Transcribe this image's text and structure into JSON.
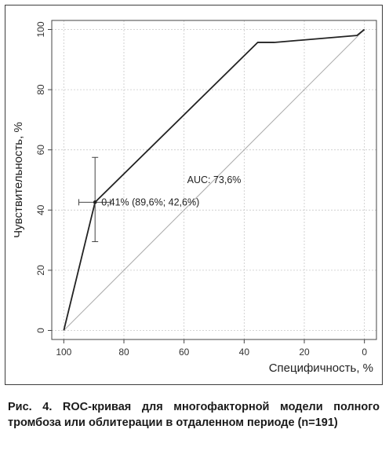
{
  "chart_data": {
    "type": "line",
    "title": "",
    "xlabel": "Специфичность, %",
    "ylabel": "Чувствительность, %",
    "xlim": [
      104,
      -4
    ],
    "ylim": [
      -3,
      103
    ],
    "x_reversed": true,
    "xticks": [
      100,
      80,
      60,
      40,
      20,
      0
    ],
    "yticks": [
      0,
      20,
      40,
      60,
      80,
      100
    ],
    "xtick_labels": [
      "100",
      "80",
      "60",
      "40",
      "20",
      "0"
    ],
    "ytick_labels": [
      "0",
      "20",
      "40",
      "60",
      "80",
      "100"
    ],
    "grid": true,
    "series": [
      {
        "x": [
          100,
          89.6,
          35.5,
          30,
          2.5,
          0
        ],
        "y": [
          0,
          42.6,
          95.7,
          95.7,
          98,
          100
        ]
      }
    ],
    "reference_line": {
      "x": [
        100,
        0
      ],
      "y": [
        0,
        100
      ]
    },
    "optimal_point": {
      "x": 89.6,
      "y": 42.6,
      "x_ci": [
        95,
        84.5
      ],
      "y_ci": [
        29.5,
        57.5
      ],
      "label": "0,41% (89,6%; 42,6%)"
    },
    "annotations": [
      {
        "text": "AUC: 73,6%",
        "x": 50,
        "y": 49
      }
    ],
    "colors": {
      "roc": "#222222",
      "diagonal": "#aaaaaa",
      "grid": "#c8c8c8",
      "ci": "#444444"
    }
  },
  "caption": "Рис. 4. ROC-кривая для многофакторной модели полного тромбоза или облитерации в отдаленном периоде (n=191)"
}
